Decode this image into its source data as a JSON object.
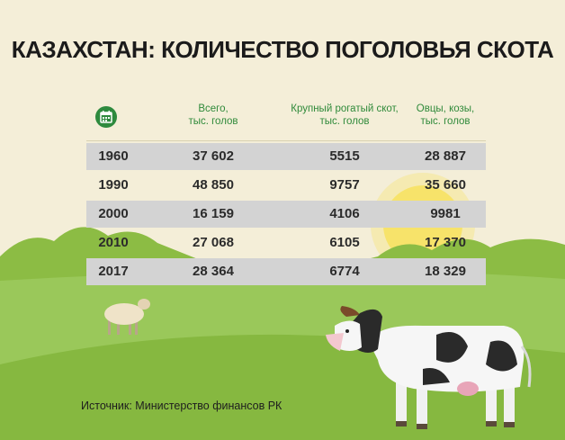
{
  "chart_data": {
    "type": "table",
    "title": "КАЗАХСТАН: КОЛИЧЕСТВО ПОГОЛОВЬЯ СКОТА",
    "columns": [
      [
        "Всего,",
        "тыс. голов"
      ],
      [
        "Крупный рогатый скот,",
        "тыс. голов"
      ],
      [
        "Овцы, козы,",
        "тыс. голов"
      ]
    ],
    "rows": [
      {
        "year": "1960",
        "total": "37 602",
        "cattle": "5515",
        "sheep_goats": "28 887"
      },
      {
        "year": "1990",
        "total": "48 850",
        "cattle": "9757",
        "sheep_goats": "35 660"
      },
      {
        "year": "2000",
        "total": "16 159",
        "cattle": "4106",
        "sheep_goats": "9981"
      },
      {
        "year": "2010",
        "total": "27 068",
        "cattle": "6105",
        "sheep_goats": "17 370"
      },
      {
        "year": "2017",
        "total": "28 364",
        "cattle": "6774",
        "sheep_goats": "18 329"
      }
    ],
    "source": "Источник: Министерство финансов РК"
  },
  "icons": {
    "header": "calendar-icon"
  },
  "colors": {
    "accent_green": "#2f8a3a",
    "row_shade": "#d3d3d3",
    "sky": "#f4eed8",
    "grass": "#8fc04a"
  }
}
